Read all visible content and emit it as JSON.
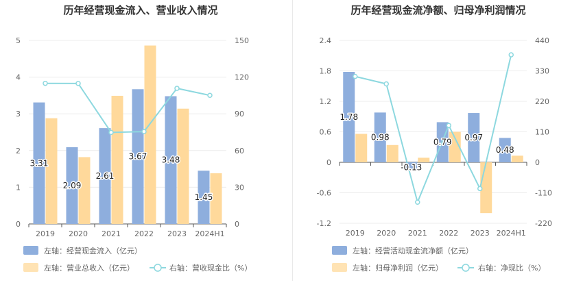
{
  "chart_data": [
    {
      "type": "bar",
      "title": "历年经营现金流入、营业收入情况",
      "categories": [
        "2019",
        "2020",
        "2021",
        "2022",
        "2023",
        "2024H1"
      ],
      "y_left": {
        "ticks": [
          "0",
          "1",
          "2",
          "3",
          "4",
          "5"
        ],
        "range": [
          0,
          5
        ]
      },
      "y_right": {
        "ticks": [
          "0",
          "30",
          "60",
          "90",
          "120",
          "150"
        ],
        "range": [
          0,
          150
        ]
      },
      "series": [
        {
          "name": "左轴：经营现金流入（亿元）",
          "type": "bar",
          "axis": "left",
          "color": "#8eaedd",
          "values": [
            3.31,
            2.09,
            2.61,
            3.67,
            3.48,
            1.45
          ],
          "labels": [
            "3.31",
            "2.09",
            "2.61",
            "3.67",
            "3.48",
            "1.45"
          ]
        },
        {
          "name": "左轴：营业总收入（亿元）",
          "type": "bar",
          "axis": "left",
          "color": "#ffd99b",
          "values": [
            2.88,
            1.82,
            3.49,
            4.86,
            3.14,
            1.38
          ]
        },
        {
          "name": "右轴：营收现金比（%）",
          "type": "line",
          "axis": "right",
          "color": "#8dd8df",
          "values": [
            114.9,
            114.8,
            74.8,
            75.5,
            110.8,
            105.1
          ]
        }
      ]
    },
    {
      "type": "bar",
      "title": "历年经营现金流净额、归母净利润情况",
      "categories": [
        "2019",
        "2020",
        "2021",
        "2022",
        "2023",
        "2024H1"
      ],
      "y_left": {
        "ticks": [
          "-1.2",
          "-0.6",
          "0",
          "0.6",
          "1.2",
          "1.8",
          "2.4"
        ],
        "range": [
          -1.2,
          2.4
        ]
      },
      "y_right": {
        "ticks": [
          "-220",
          "-110",
          "0",
          "110",
          "220",
          "330",
          "440"
        ],
        "range": [
          -220,
          440
        ]
      },
      "series": [
        {
          "name": "左轴：经营活动现金流净额（亿元）",
          "type": "bar",
          "axis": "left",
          "color": "#8eaedd",
          "values": [
            1.78,
            0.98,
            -0.13,
            0.79,
            0.97,
            0.48
          ],
          "labels": [
            "1.78",
            "0.98",
            "-0.13",
            "0.79",
            "0.97",
            "0.48"
          ]
        },
        {
          "name": "左轴：归母净利润（亿元）",
          "type": "bar",
          "axis": "left",
          "color": "#ffd99b",
          "values": [
            0.56,
            0.34,
            0.09,
            0.6,
            -1.0,
            0.13
          ]
        },
        {
          "name": "右轴：净现比（%）",
          "type": "line",
          "axis": "right",
          "color": "#8dd8df",
          "values": [
            310,
            283,
            -144,
            133,
            -95,
            388
          ]
        }
      ]
    }
  ]
}
